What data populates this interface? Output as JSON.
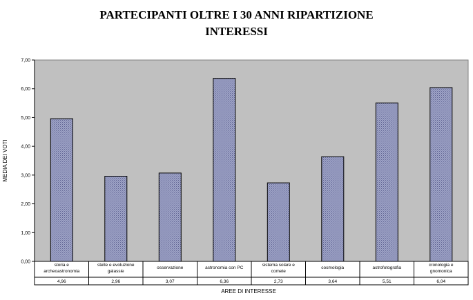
{
  "chart_data": {
    "type": "bar",
    "title": "PARTECIPANTI OLTRE I 30 ANNI   RIPARTIZIONE\nINTERESSI",
    "xlabel": "AREE DI INTERESSE",
    "ylabel": "MEDIA DEI VOTI",
    "ylim": [
      0,
      7
    ],
    "yticks": [
      "0,00",
      "1,00",
      "2,00",
      "3,00",
      "4,00",
      "5,00",
      "6,00",
      "7,00"
    ],
    "categories": [
      [
        "storia e",
        "archeoastronomia"
      ],
      [
        "stelle e evoluzione",
        "galassie"
      ],
      [
        "osservazione"
      ],
      [
        "astronomia con PC"
      ],
      [
        "sistema solare e",
        "comete"
      ],
      [
        "cosmologia"
      ],
      [
        "astrofotografia"
      ],
      [
        "cronologia e",
        "gnomonica"
      ]
    ],
    "values": [
      4.96,
      2.96,
      3.07,
      6.36,
      2.73,
      3.64,
      5.51,
      6.04
    ],
    "value_labels": [
      "4,96",
      "2,96",
      "3,07",
      "6,36",
      "2,73",
      "3,64",
      "5,51",
      "6,04"
    ],
    "grid": false,
    "legend": "none",
    "colors": {
      "plot_bg": "#c0c0c0",
      "bar_fill": "#9ea3c6",
      "bar_pattern": "#5f6393"
    }
  }
}
